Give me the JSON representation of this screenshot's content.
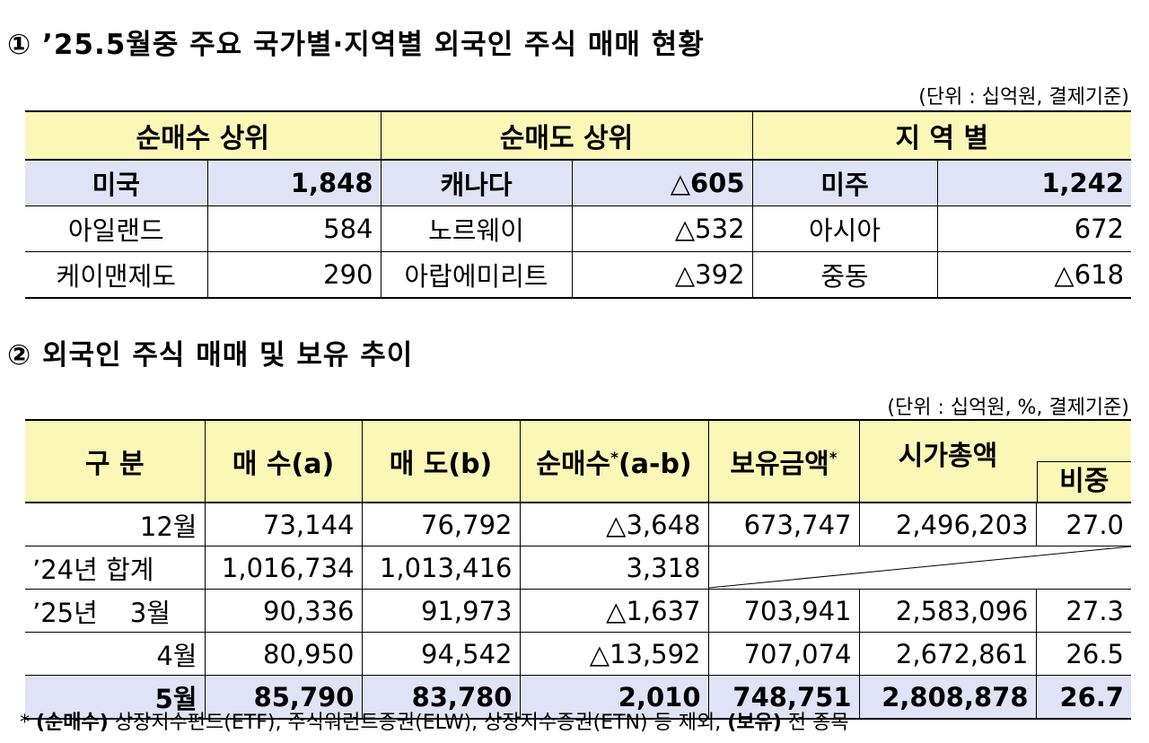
{
  "section1": {
    "title": "① ’25.5월중 주요 국가별·지역별 외국인 주식 매매 현황",
    "unit": "(단위 : 십억원, 결제기준)",
    "headers": [
      "순매수 상위",
      "순매도 상위",
      "지 역 별"
    ],
    "rows": [
      {
        "buy_name": "미국",
        "buy_val": "1,848",
        "sell_name": "캐나다",
        "sell_val": "△605",
        "region_name": "미주",
        "region_val": "1,242"
      },
      {
        "buy_name": "아일랜드",
        "buy_val": "584",
        "sell_name": "노르웨이",
        "sell_val": "△532",
        "region_name": "아시아",
        "region_val": "672"
      },
      {
        "buy_name": "케이맨제도",
        "buy_val": "290",
        "sell_name": "아랍에미리트",
        "sell_val": "△392",
        "region_name": "중동",
        "region_val": "△618"
      }
    ]
  },
  "section2": {
    "title": "② 외국인 주식 매매 및 보유 추이",
    "unit": "(단위 : 십억원, %, 결제기준)",
    "headers": {
      "category": "구 분",
      "buy": "매 수(a)",
      "sell": "매 도(b)",
      "net": "순매수",
      "net_suffix": "(a-b)",
      "holdings": "보유금액",
      "market_cap": "시가총액",
      "ratio": "비중",
      "asterisk": "*"
    },
    "rows": [
      {
        "label": "12월",
        "buy": "73,144",
        "sell": "76,792",
        "net": "△3,648",
        "holdings": "673,747",
        "market_cap": "2,496,203",
        "ratio": "27.0"
      },
      {
        "label_a": "’24년",
        "label_b": "합계",
        "buy": "1,016,734",
        "sell": "1,013,416",
        "net": "3,318"
      },
      {
        "label_a": "’25년",
        "label_b": "3월",
        "buy": "90,336",
        "sell": "91,973",
        "net": "△1,637",
        "holdings": "703,941",
        "market_cap": "2,583,096",
        "ratio": "27.3"
      },
      {
        "label": "4월",
        "buy": "80,950",
        "sell": "94,542",
        "net": "△13,592",
        "holdings": "707,074",
        "market_cap": "2,672,861",
        "ratio": "26.5"
      },
      {
        "label": "5월",
        "buy": "85,790",
        "sell": "83,780",
        "net": "2,010",
        "holdings": "748,751",
        "market_cap": "2,808,878",
        "ratio": "26.7"
      }
    ],
    "footnote": {
      "star": "*",
      "net_label": "(순매수)",
      "net_text": "상장지수펀드(ETF), 주식워런트증권(ELW), 상장지수증권(ETN) 등 제외,",
      "hold_label": "(보유)",
      "hold_text": "전 종목"
    }
  },
  "colors": {
    "header_bg": "#fbf7b7",
    "highlight_bg": "#e0e3f5"
  }
}
